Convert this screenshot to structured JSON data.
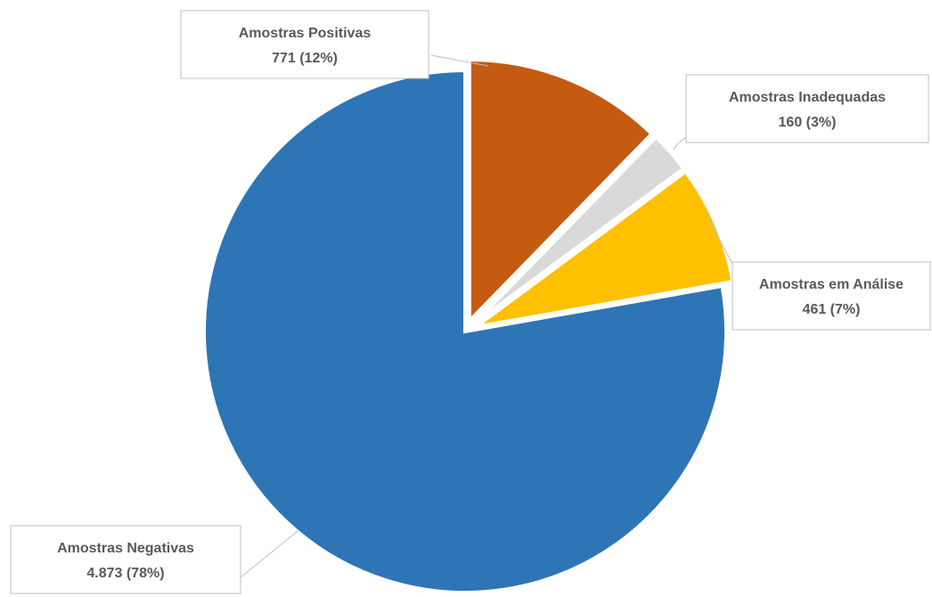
{
  "chart_data": {
    "type": "pie",
    "start_angle_deg": 0,
    "direction": "clockwise",
    "slices": [
      {
        "name": "Amostras Positivas",
        "value": 771,
        "value_label": "771 (12%)",
        "color": "#C55A11",
        "exploded": true
      },
      {
        "name": "Amostras Inadequadas",
        "value": 160,
        "value_label": "160 (3%)",
        "color": "#D9D9D9",
        "exploded": true
      },
      {
        "name": "Amostras em Análise",
        "value": 461,
        "value_label": "461 (7%)",
        "color": "#FFC000",
        "exploded": true
      },
      {
        "name": "Amostras Negativas",
        "value": 4873,
        "value_label": "4.873 (78%)",
        "color": "#2E75B6",
        "exploded": false
      }
    ]
  }
}
